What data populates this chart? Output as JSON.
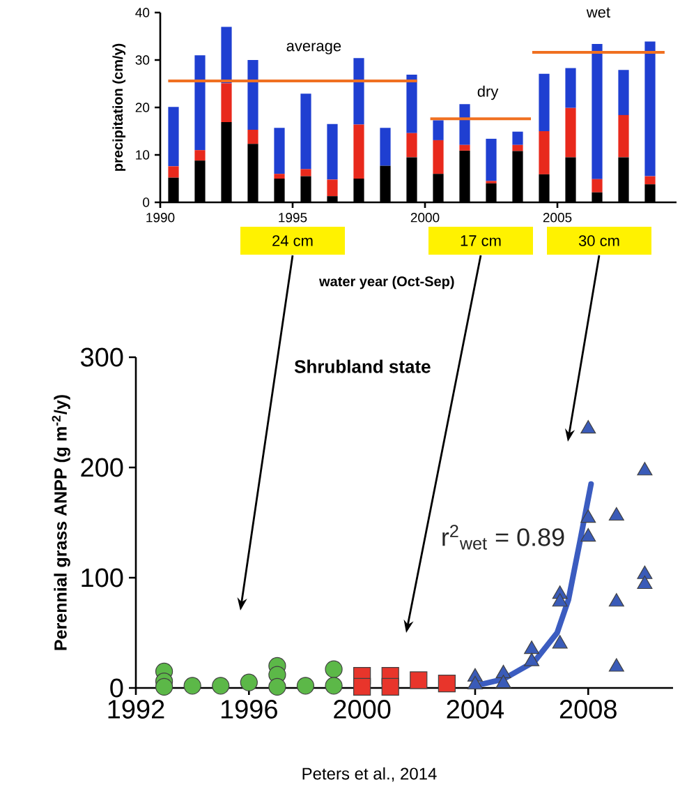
{
  "chart_data": [
    {
      "type": "bar",
      "stacked": true,
      "ylabel": "precipitation (cm/y)",
      "xlabel": "water year (Oct-Sep)",
      "x": [
        1990.5,
        1991.5,
        1992.5,
        1993.5,
        1994.5,
        1995.5,
        1996.5,
        1997.5,
        1998.5,
        1999.5,
        2000.5,
        2001.5,
        2002.5,
        2003.5,
        2004.5,
        2005.5,
        2006.5,
        2007.5,
        2008.5
      ],
      "series": [
        {
          "color": "#000000",
          "values": [
            5.2,
            8.8,
            16.9,
            12.3,
            5.0,
            5.5,
            1.3,
            5.0,
            7.7,
            9.5,
            6.0,
            10.9,
            4.0,
            10.8,
            5.9,
            9.5,
            2.1,
            9.5,
            3.8
          ]
        },
        {
          "color": "#e8291c",
          "values": [
            2.4,
            2.2,
            8.2,
            3.0,
            1.0,
            1.5,
            3.5,
            11.4,
            0,
            5.1,
            7.1,
            1.2,
            0.5,
            1.3,
            9.1,
            10.4,
            2.8,
            8.9,
            1.7
          ]
        },
        {
          "color": "#1f3fd1",
          "values": [
            12.5,
            20.0,
            11.9,
            14.7,
            9.7,
            15.9,
            11.7,
            14.0,
            8.0,
            12.3,
            4.2,
            8.6,
            8.9,
            2.8,
            12.1,
            8.4,
            28.5,
            9.5,
            28.4
          ]
        },
        {
          "type": "line",
          "name": "average",
          "color": "#f07021",
          "x": [
            1990.3,
            1999.7
          ],
          "values": [
            25.6,
            25.6
          ]
        },
        {
          "type": "line",
          "name": "dry",
          "color": "#f07021",
          "x": [
            2000.2,
            2004.0
          ],
          "values": [
            17.6,
            17.6
          ]
        },
        {
          "type": "line",
          "name": "wet",
          "color": "#f07021",
          "x": [
            2004.05,
            2009.05
          ],
          "values": [
            31.6,
            31.6
          ]
        }
      ],
      "xlim": [
        1990,
        2009.5
      ],
      "ylim": [
        0,
        40
      ],
      "xticks": [
        1990,
        1995,
        2000,
        2005
      ],
      "yticks": [
        0,
        10,
        20,
        30,
        40
      ],
      "annotations": [
        "24 cm",
        "17 cm",
        "30 cm"
      ]
    },
    {
      "type": "scatter",
      "title": "Shrubland state",
      "ylabel": "Perennial grass ANPP (g m$^{-2}$/y)",
      "series": [
        {
          "color": "#5cb848",
          "marker": "circle",
          "x": [
            1993,
            1993,
            1993,
            1994,
            1995,
            1996,
            1997,
            1997,
            1997,
            1998,
            1999,
            1999
          ],
          "values": [
            15,
            6,
            1,
            2,
            2,
            5,
            20,
            12,
            1,
            2,
            17,
            2
          ]
        },
        {
          "color": "#e8352b",
          "marker": "square",
          "x": [
            2000,
            2000,
            2001,
            2001,
            2002,
            2003
          ],
          "values": [
            11,
            1,
            11,
            1,
            7,
            4
          ]
        },
        {
          "color": "#3a5bb8",
          "marker": "triangle",
          "x": [
            2004,
            2004,
            2005,
            2005,
            2006,
            2006,
            2007,
            2007,
            2007,
            2008,
            2008,
            2008
          ],
          "values": [
            10,
            3,
            13,
            4,
            35,
            24,
            85,
            78,
            40,
            235,
            154,
            137
          ]
        },
        {
          "color": "#3a5bb8",
          "marker": "triangle",
          "x": [
            2009,
            2009,
            2009,
            2010,
            2010,
            2010
          ],
          "values": [
            156,
            78,
            19,
            197,
            103,
            94
          ]
        },
        {
          "type": "line",
          "color": "#3b5cc0",
          "marker": "none",
          "x": [
            2004,
            2005,
            2006.1,
            2006.9,
            2007.3,
            2007.7,
            2008.1
          ],
          "values": [
            2,
            8,
            24,
            50,
            80,
            132,
            185
          ]
        }
      ],
      "xlim": [
        1992,
        2011
      ],
      "ylim": [
        0,
        300
      ],
      "xticks": [
        1992,
        1996,
        2000,
        2004,
        2008
      ],
      "yticks": [
        0,
        100,
        200,
        300
      ],
      "annotations": [
        "r$^{2}$$_{wet}$ = 0.89",
        "Peters et al., 2014"
      ]
    }
  ]
}
